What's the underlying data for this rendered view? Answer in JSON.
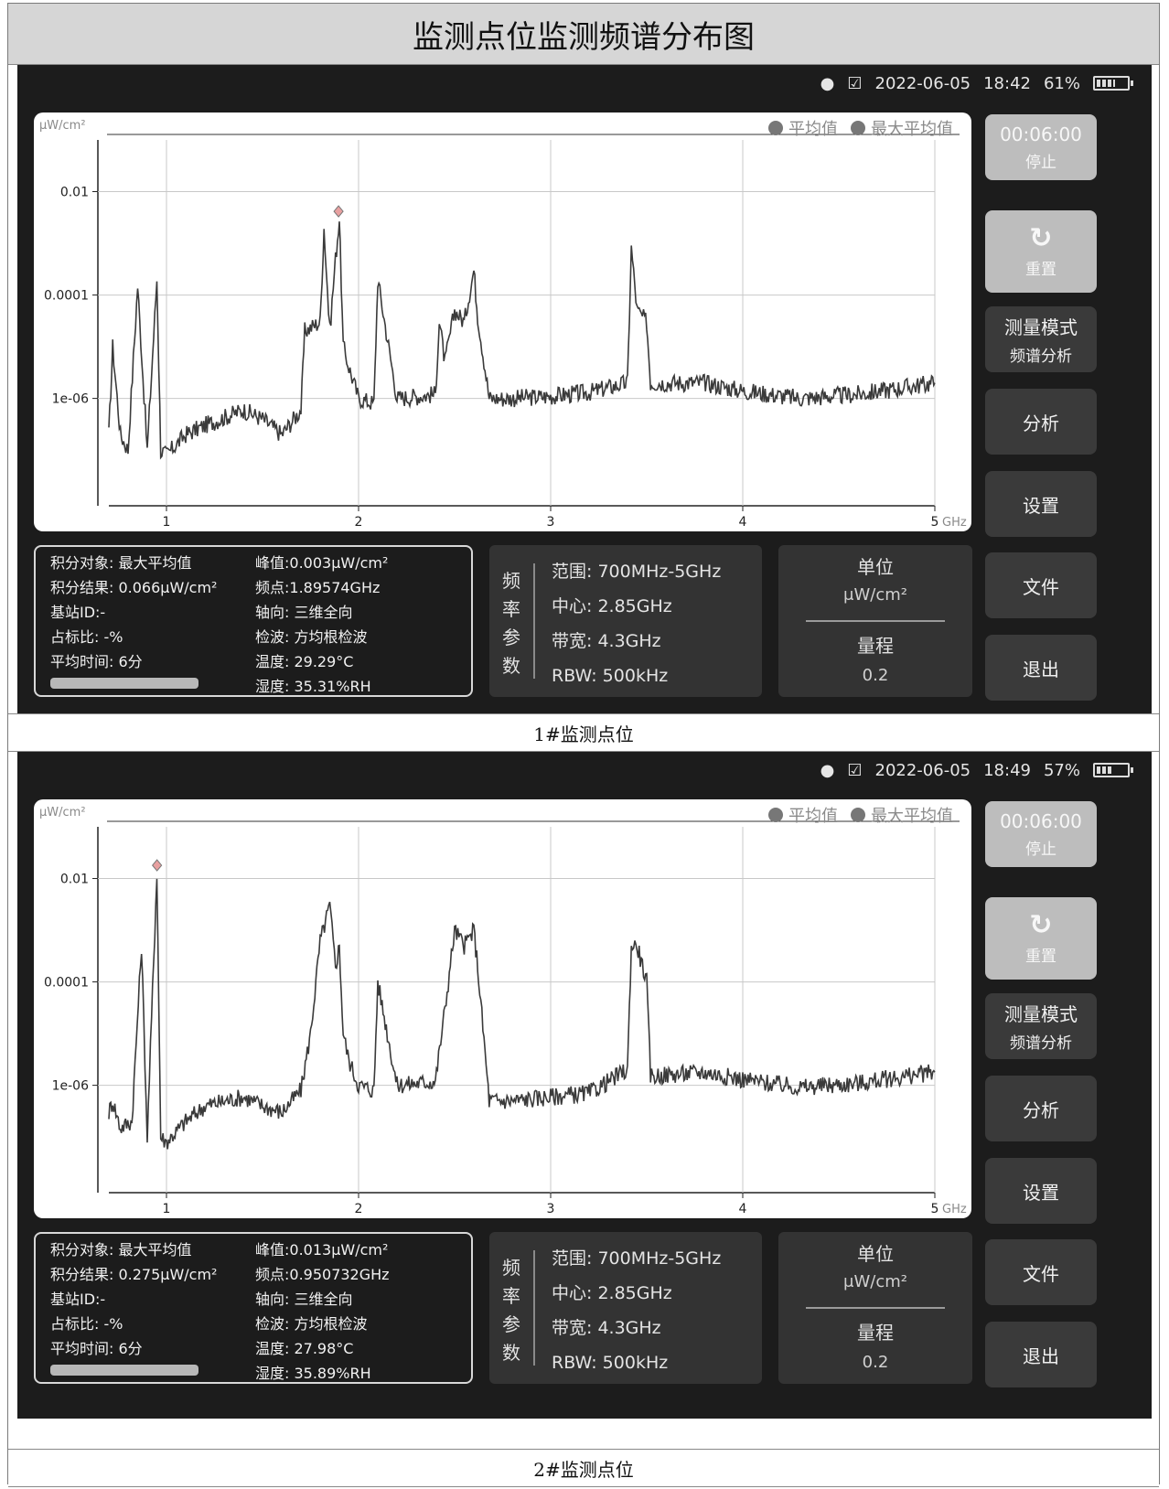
{
  "document": {
    "title": "监测点位监测频谱分布图"
  },
  "panels": [
    {
      "caption": "1#监测点位",
      "status": {
        "date": "2022-06-05",
        "time": "18:42",
        "battery": "61%",
        "battery_level": 0.61
      },
      "chart": {
        "unit": "μW/cm²",
        "legend": [
          "平均值",
          "最大平均值"
        ],
        "x_unit": "GHz"
      },
      "buttons": {
        "timer": "00:06:00",
        "stop": "停止",
        "reset": "重置",
        "mode": "测量模式",
        "mode_sub": "频谱分析",
        "analyze": "分析",
        "settings": "设置",
        "file": "文件",
        "exit": "退出"
      },
      "info_left": [
        "积分对象: 最大平均值",
        "积分结果: 0.066μW/cm²",
        "基站ID:-",
        "占标比: -%",
        "平均时间: 6分"
      ],
      "info_right": [
        "峰值:0.003μW/cm²",
        "频点:1.89574GHz",
        "轴向: 三维全向",
        "检波: 方均根检波",
        "温度: 29.29°C",
        "湿度: 35.31%RH"
      ],
      "freq": {
        "label_chars": [
          "频",
          "率",
          "参",
          "数"
        ],
        "lines": [
          "范围: 700MHz-5GHz",
          "中心: 2.85GHz",
          "带宽: 4.3GHz",
          "RBW: 500kHz"
        ]
      },
      "unit_box": {
        "unit_title": "单位",
        "unit_value": "μW/cm²",
        "range_title": "量程",
        "range_value": "0.2"
      }
    },
    {
      "caption": "2#监测点位",
      "status": {
        "date": "2022-06-05",
        "time": "18:49",
        "battery": "57%",
        "battery_level": 0.57
      },
      "chart": {
        "unit": "μW/cm²",
        "legend": [
          "平均值",
          "最大平均值"
        ],
        "x_unit": "GHz"
      },
      "buttons": {
        "timer": "00:06:00",
        "stop": "停止",
        "reset": "重置",
        "mode": "测量模式",
        "mode_sub": "频谱分析",
        "analyze": "分析",
        "settings": "设置",
        "file": "文件",
        "exit": "退出"
      },
      "info_left": [
        "积分对象: 最大平均值",
        "积分结果: 0.275μW/cm²",
        "基站ID:-",
        "占标比: -%",
        "平均时间: 6分"
      ],
      "info_right": [
        "峰值:0.013μW/cm²",
        "频点:0.950732GHz",
        "轴向: 三维全向",
        "检波: 方均根检波",
        "温度: 27.98°C",
        "湿度: 35.89%RH"
      ],
      "freq": {
        "label_chars": [
          "频",
          "率",
          "参",
          "数"
        ],
        "lines": [
          "范围: 700MHz-5GHz",
          "中心: 2.85GHz",
          "带宽: 4.3GHz",
          "RBW: 500kHz"
        ]
      },
      "unit_box": {
        "unit_title": "单位",
        "unit_value": "μW/cm²",
        "range_title": "量程",
        "range_value": "0.2"
      }
    }
  ],
  "chart_data": [
    {
      "type": "line",
      "xlabel": "GHz",
      "ylabel": "μW/cm²",
      "x_ticks": [
        "1",
        "2",
        "3",
        "4",
        "5"
      ],
      "y_ticks": [
        "0.01",
        "0.0001",
        "1e-06"
      ],
      "y_scale": "log",
      "xlim": [
        0.7,
        5
      ],
      "series": [
        {
          "name": "最大平均值",
          "x": [
            0.7,
            0.72,
            0.76,
            0.8,
            0.85,
            0.9,
            0.95,
            0.97,
            1.0,
            1.1,
            1.2,
            1.4,
            1.5,
            1.6,
            1.7,
            1.72,
            1.8,
            1.82,
            1.85,
            1.88,
            1.9,
            1.92,
            1.95,
            2.0,
            2.08,
            2.1,
            2.2,
            2.4,
            2.42,
            2.45,
            2.5,
            2.55,
            2.6,
            2.62,
            2.68,
            2.8,
            3.0,
            3.2,
            3.4,
            3.42,
            3.45,
            3.5,
            3.52,
            3.8,
            4.0,
            4.3,
            4.6,
            5.0
          ],
          "y": [
            2e-07,
            1e-05,
            2e-07,
            1e-07,
            0.00015,
            1e-07,
            0.0002,
            1e-07,
            8e-08,
            2e-07,
            3e-07,
            6e-07,
            4e-07,
            2e-07,
            6e-07,
            2e-05,
            3e-05,
            0.002,
            2e-05,
            0.0005,
            0.003,
            1e-05,
            4e-06,
            1e-06,
            8e-07,
            0.0002,
            1e-06,
            1.2e-06,
            3e-05,
            5e-06,
            5e-05,
            3e-05,
            0.0003,
            4e-05,
            1e-06,
            1e-06,
            1.1e-06,
            1.3e-06,
            2e-06,
            0.0008,
            5e-05,
            3e-05,
            2e-06,
            2e-06,
            1.4e-06,
            1e-06,
            1.2e-06,
            2e-06
          ]
        }
      ],
      "annotations": [
        "peak 0.003 @ 1.89574GHz"
      ]
    },
    {
      "type": "line",
      "xlabel": "GHz",
      "ylabel": "μW/cm²",
      "x_ticks": [
        "1",
        "2",
        "3",
        "4",
        "5"
      ],
      "y_ticks": [
        "0.01",
        "0.0001",
        "1e-06"
      ],
      "y_scale": "log",
      "xlim": [
        0.7,
        5
      ],
      "series": [
        {
          "name": "最大平均值",
          "x": [
            0.7,
            0.72,
            0.76,
            0.82,
            0.87,
            0.9,
            0.95,
            0.97,
            1.0,
            1.1,
            1.2,
            1.4,
            1.5,
            1.6,
            1.7,
            1.75,
            1.8,
            1.85,
            1.88,
            1.9,
            1.92,
            1.95,
            2.0,
            2.08,
            2.1,
            2.2,
            2.4,
            2.45,
            2.5,
            2.55,
            2.6,
            2.62,
            2.68,
            2.8,
            3.0,
            3.2,
            3.4,
            3.42,
            3.45,
            3.5,
            3.52,
            3.8,
            4.0,
            4.3,
            4.6,
            5.0
          ],
          "y": [
            3e-07,
            5e-07,
            1.5e-07,
            2e-07,
            0.0005,
            1e-07,
            0.013,
            1e-07,
            8e-08,
            2e-07,
            4e-07,
            6e-07,
            4e-07,
            3e-07,
            8e-07,
            1e-05,
            0.0006,
            0.003,
            0.0002,
            0.0005,
            1e-05,
            3e-06,
            1e-06,
            8e-07,
            0.0001,
            1e-06,
            1.2e-06,
            3e-05,
            0.001,
            0.0005,
            0.001,
            0.0002,
            5e-07,
            5e-07,
            6e-07,
            7e-07,
            2e-06,
            0.0005,
            0.0005,
            0.0001,
            1.5e-06,
            1.8e-06,
            1.3e-06,
            9e-07,
            1.1e-06,
            1.8e-06
          ]
        }
      ],
      "annotations": [
        "peak 0.013 @ 0.950732GHz"
      ]
    }
  ]
}
